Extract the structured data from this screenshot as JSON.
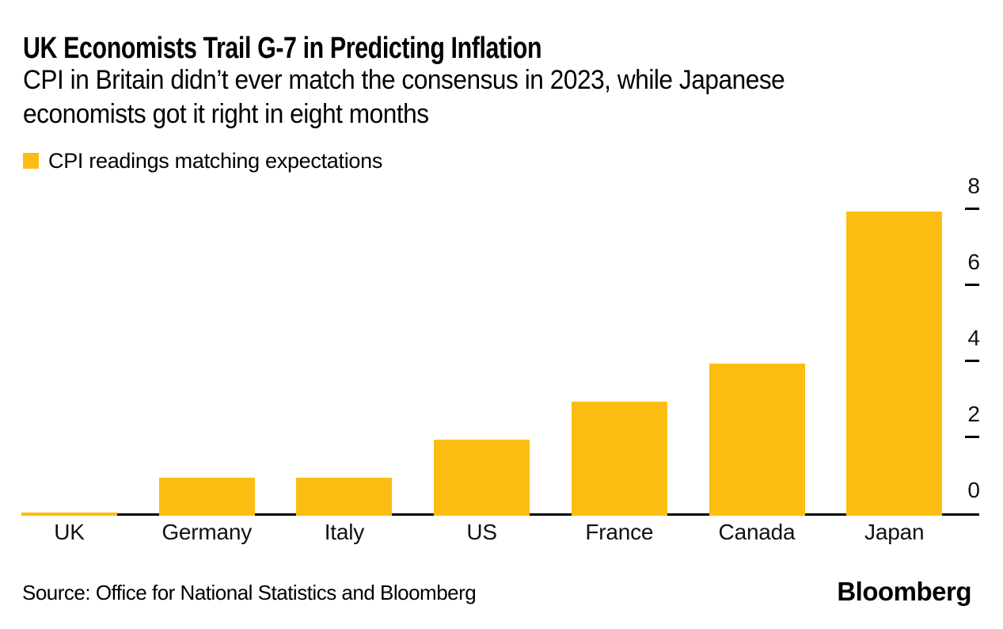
{
  "header": {
    "title": "UK Economists Trail G-7 in Predicting Inflation",
    "subtitle_line1": "CPI in Britain didn’t ever match the consensus in 2023, while Japanese",
    "subtitle_line2": "economists got it right in eight months"
  },
  "legend": {
    "label": "CPI readings matching expectations",
    "swatch_color": "#FCBD12"
  },
  "chart_data": {
    "type": "bar",
    "title": "UK Economists Trail G-7 in Predicting Inflation",
    "subtitle": "CPI in Britain didn’t ever match the consensus in 2023, while Japanese economists got it right in eight months",
    "categories": [
      "UK",
      "Germany",
      "Italy",
      "US",
      "France",
      "Canada",
      "Japan"
    ],
    "values": [
      0,
      1,
      1,
      2,
      3,
      4,
      8
    ],
    "series_name": "CPI readings matching expectations",
    "bar_color": "#FCBD12",
    "axis_color": "#000000",
    "label_color": "#111111",
    "yticks": [
      0,
      2,
      4,
      6,
      8
    ],
    "ylim": [
      0,
      8
    ],
    "y_axis_side": "right",
    "grid": false,
    "legend_position": "top-left",
    "xlabel": "",
    "ylabel": ""
  },
  "footer": {
    "source": "Source: Office for National Statistics and Bloomberg",
    "brand": "Bloomberg"
  }
}
